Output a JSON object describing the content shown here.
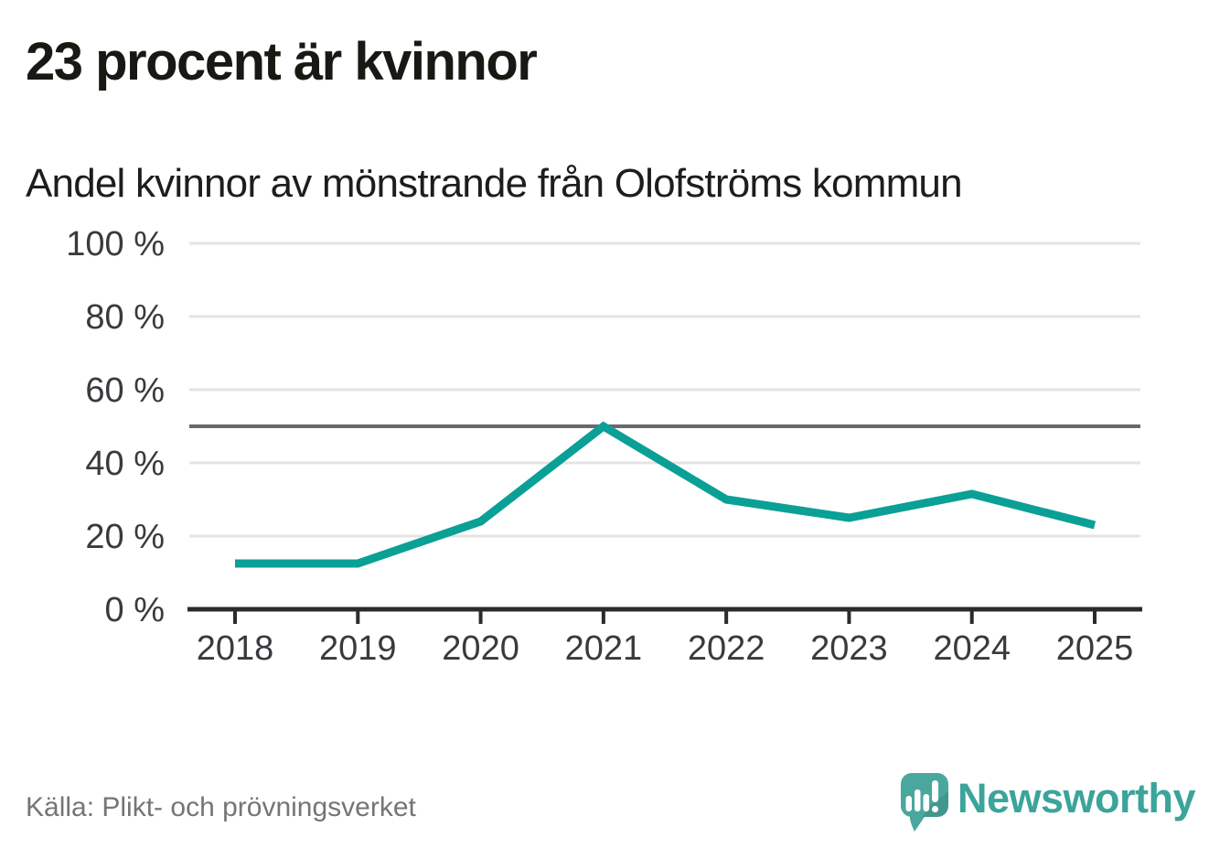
{
  "chart_data": {
    "type": "line",
    "title": "23 procent är kvinnor",
    "subtitle": "Andel kvinnor av mönstrande från Olofströms kommun",
    "categories": [
      "2018",
      "2019",
      "2020",
      "2021",
      "2022",
      "2023",
      "2024",
      "2025"
    ],
    "values": [
      12.5,
      12.5,
      24,
      50,
      30,
      25,
      31.5,
      23
    ],
    "unit": "%",
    "xlabel": "",
    "ylabel": "",
    "ylim": [
      0,
      100
    ],
    "yticks": [
      0,
      20,
      40,
      60,
      80,
      100
    ],
    "ytick_labels": [
      "0 %",
      "20 %",
      "40 %",
      "60 %",
      "80 %",
      "100 %"
    ],
    "reference_line": 50,
    "grid": true,
    "legend": "none",
    "line_color": "#0aa096",
    "reference_line_color": "#68686e",
    "grid_color": "#e4e4e4",
    "axis_color": "#2b2b2b",
    "tick_label_color": "#3a3a3e"
  },
  "footer": {
    "source": "Källa: Plikt- och prövningsverket",
    "brand": "Newsworthy",
    "brand_color": "#3ba49b",
    "logo_bubble_color": "#4aa79e"
  }
}
